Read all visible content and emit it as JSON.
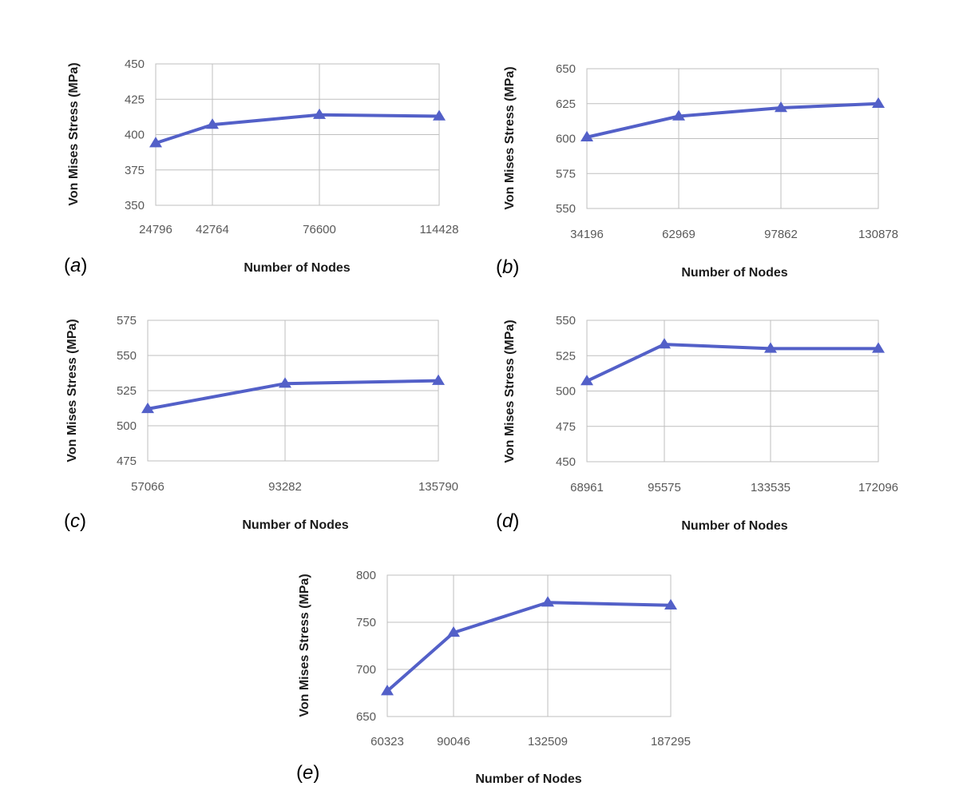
{
  "chart_data": [
    {
      "type": "line",
      "panel_label": "(a)",
      "categories": [
        "24796",
        "42764",
        "76600",
        "114428"
      ],
      "values": [
        394,
        407,
        414,
        413
      ],
      "ylim": [
        350,
        450
      ],
      "yticks": [
        350,
        375,
        400,
        425,
        450
      ],
      "xlabel": "Number of Nodes",
      "ylabel": "Von Mises Stress (MPa)",
      "grid": true,
      "marker": "triangle",
      "color": "#5360c8"
    },
    {
      "type": "line",
      "panel_label": "(b)",
      "categories": [
        "34196",
        "62969",
        "97862",
        "130878"
      ],
      "values": [
        601,
        616,
        622,
        625
      ],
      "ylim": [
        550,
        650
      ],
      "yticks": [
        550,
        575,
        600,
        625,
        650
      ],
      "xlabel": "Number of Nodes",
      "ylabel": "Von Mises Stress (MPa)",
      "grid": true,
      "marker": "triangle",
      "color": "#5360c8"
    },
    {
      "type": "line",
      "panel_label": "(c)",
      "categories": [
        "57066",
        "93282",
        "135790"
      ],
      "values": [
        512,
        530,
        532
      ],
      "ylim": [
        475,
        575
      ],
      "yticks": [
        475,
        500,
        525,
        550,
        575
      ],
      "xlabel": "Number of Nodes",
      "ylabel": "Von Mises Stress (MPa)",
      "grid": true,
      "marker": "triangle",
      "color": "#5360c8"
    },
    {
      "type": "line",
      "panel_label": "(d)",
      "categories": [
        "68961",
        "95575",
        "133535",
        "172096"
      ],
      "values": [
        507,
        533,
        530,
        530
      ],
      "ylim": [
        450,
        550
      ],
      "yticks": [
        450,
        475,
        500,
        525,
        550
      ],
      "xlabel": "Number of Nodes",
      "ylabel": "Von Mises Stress (MPa)",
      "grid": true,
      "marker": "triangle",
      "color": "#5360c8"
    },
    {
      "type": "line",
      "panel_label": "(e)",
      "categories": [
        "60323",
        "90046",
        "132509",
        "187295"
      ],
      "values": [
        677,
        739,
        771,
        768
      ],
      "ylim": [
        650,
        800
      ],
      "yticks": [
        650,
        700,
        750,
        800
      ],
      "xlabel": "Number of Nodes",
      "ylabel": "Von Mises Stress (MPa)",
      "grid": true,
      "marker": "triangle",
      "color": "#5360c8"
    }
  ]
}
